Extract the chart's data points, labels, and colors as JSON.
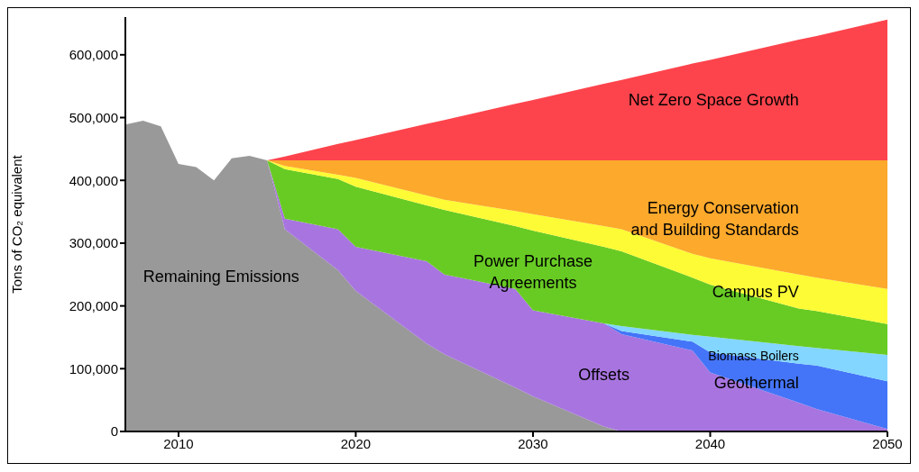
{
  "chart_data": {
    "type": "area",
    "stacked": true,
    "ylabel": "Tons of CO₂ equivalent",
    "x": [
      2007,
      2008,
      2009,
      2010,
      2011,
      2012,
      2013,
      2014,
      2015,
      2016,
      2019,
      2020,
      2024,
      2025,
      2029,
      2030,
      2034,
      2035,
      2039,
      2040,
      2045,
      2046,
      2050
    ],
    "xlim": [
      2007,
      2050
    ],
    "xticks": [
      2010,
      2020,
      2030,
      2040,
      2050
    ],
    "ylim": [
      0,
      660000
    ],
    "yticks": [
      {
        "value": 0,
        "label": "0"
      },
      {
        "value": 100000,
        "label": "100,000"
      },
      {
        "value": 200000,
        "label": "200,000"
      },
      {
        "value": 300000,
        "label": "300,000"
      },
      {
        "value": 400000,
        "label": "400,000"
      },
      {
        "value": 500000,
        "label": "500,000"
      },
      {
        "value": 600000,
        "label": "600,000"
      }
    ],
    "series": [
      {
        "name": "Remaining Emissions",
        "color": "#999999",
        "values": [
          489000,
          495000,
          486000,
          426000,
          421000,
          400000,
          435000,
          439000,
          432000,
          322000,
          257000,
          224000,
          140000,
          123000,
          70000,
          56000,
          8000,
          0,
          null,
          null,
          null,
          null,
          null
        ]
      },
      {
        "name": "Offsets",
        "color": "#a875e0",
        "values": [
          null,
          null,
          null,
          null,
          null,
          null,
          null,
          null,
          0,
          17000,
          65000,
          70000,
          131000,
          127000,
          157000,
          137000,
          164000,
          155000,
          129000,
          94000,
          46000,
          36000,
          4000
        ]
      },
      {
        "name": "Geothermal",
        "color": "#4474f8",
        "values": [
          null,
          null,
          null,
          null,
          null,
          null,
          null,
          null,
          null,
          null,
          null,
          null,
          null,
          null,
          null,
          null,
          0,
          5000,
          14000,
          32000,
          62000,
          69000,
          76000
        ]
      },
      {
        "name": "Biomass Boilers",
        "color": "#82d6ff",
        "values": [
          null,
          null,
          null,
          null,
          null,
          null,
          null,
          null,
          null,
          null,
          null,
          null,
          null,
          null,
          null,
          null,
          0,
          8000,
          11000,
          25000,
          28000,
          28000,
          42000
        ]
      },
      {
        "name": "Power Purchase Agreements",
        "color": "#68cb24",
        "values": [
          null,
          null,
          null,
          null,
          null,
          null,
          null,
          null,
          0,
          79000,
          80000,
          96000,
          89000,
          103000,
          100000,
          127000,
          122000,
          119000,
          91000,
          83000,
          60000,
          59000,
          49000
        ]
      },
      {
        "name": "Campus PV",
        "color": "#fdfb35",
        "values": [
          null,
          null,
          null,
          null,
          null,
          null,
          null,
          null,
          0,
          5000,
          7000,
          14000,
          16000,
          16000,
          24000,
          26000,
          33000,
          35000,
          38000,
          42000,
          54000,
          53000,
          56000
        ]
      },
      {
        "name": "Energy Conservation and Building Standards",
        "color": "#fca92c",
        "values": [
          null,
          null,
          null,
          null,
          null,
          null,
          null,
          null,
          0,
          9000,
          23000,
          28000,
          56000,
          63000,
          81000,
          86000,
          105000,
          110000,
          149000,
          156000,
          182000,
          187000,
          205000
        ]
      },
      {
        "name": "Net Zero Space Growth",
        "color": "#fd444c",
        "values": [
          null,
          null,
          null,
          null,
          null,
          null,
          null,
          null,
          0,
          6000,
          26000,
          32000,
          58000,
          64000,
          90000,
          96000,
          122000,
          128000,
          154000,
          160000,
          192000,
          198000,
          224000
        ]
      }
    ]
  }
}
